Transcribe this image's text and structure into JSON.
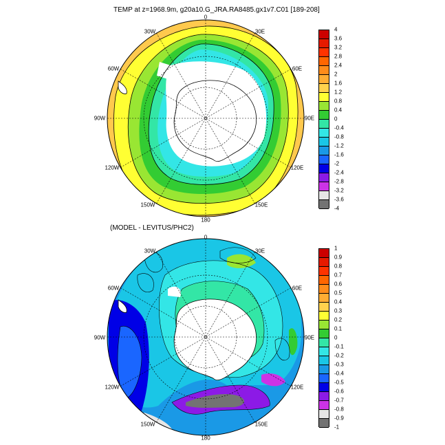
{
  "top_panel": {
    "title": "TEMP at z=1968.9m, g20a10.G_JRA.RA8485.gx1v7.C01 [189-208]",
    "lon_labels": [
      "0",
      "30E",
      "60E",
      "90E",
      "120E",
      "150E",
      "180",
      "150W",
      "120W",
      "90W",
      "60W",
      "30W"
    ],
    "colorbar": {
      "labels": [
        "4",
        "3.6",
        "3.2",
        "2.8",
        "2.4",
        "2",
        "1.6",
        "1.2",
        "0.8",
        "0.4",
        "0",
        "-0.4",
        "-0.8",
        "-1.2",
        "-1.6",
        "-2",
        "-2.4",
        "-2.8",
        "-3.2",
        "-3.6",
        "-4"
      ],
      "colors": [
        "#cc0000",
        "#e61a00",
        "#ff3300",
        "#ff6600",
        "#ff8c1a",
        "#ffad33",
        "#ffd24d",
        "#ffff33",
        "#99e633",
        "#33cc33",
        "#33e6a6",
        "#33e6e6",
        "#1ac6e6",
        "#1a99e6",
        "#1a66ff",
        "#0000e6",
        "#8c1ae6",
        "#cc33e6",
        "#e6e6e6",
        "#737373"
      ]
    }
  },
  "bottom_panel": {
    "title": "(MODEL - LEVITUS/PHC2)",
    "lon_labels": [
      "0",
      "30E",
      "60E",
      "90E",
      "120E",
      "150E",
      "180",
      "150W",
      "120W",
      "90W",
      "60W",
      "30W"
    ],
    "colorbar": {
      "labels": [
        "1",
        "0.9",
        "0.8",
        "0.7",
        "0.6",
        "0.5",
        "0.4",
        "0.3",
        "0.2",
        "0.1",
        "0",
        "-0.1",
        "-0.2",
        "-0.3",
        "-0.4",
        "-0.5",
        "-0.6",
        "-0.7",
        "-0.8",
        "-0.9",
        "-1"
      ],
      "colors": [
        "#cc0000",
        "#e61a00",
        "#ff3300",
        "#ff6600",
        "#ff8c1a",
        "#ffad33",
        "#ffd24d",
        "#ffff33",
        "#99e633",
        "#33cc33",
        "#33e6a6",
        "#33e6e6",
        "#1ac6e6",
        "#1a99e6",
        "#1a66ff",
        "#0000e6",
        "#8c1ae6",
        "#cc33e6",
        "#e6e6e6",
        "#737373"
      ]
    }
  }
}
